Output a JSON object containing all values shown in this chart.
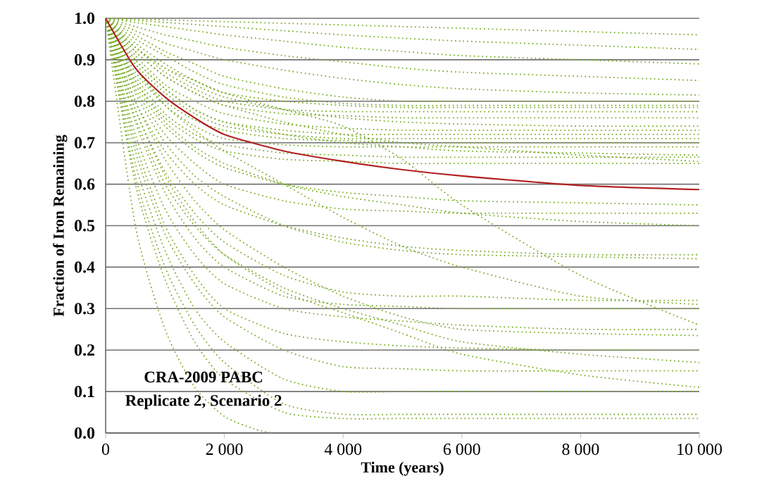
{
  "chart_data": {
    "type": "line",
    "xlabel": "Time (years)",
    "ylabel": "Fraction of Iron Remaining",
    "annotations": [
      "CRA-2009 PABC",
      "Replicate 2, Scenario 2"
    ],
    "xlim": [
      0,
      10000
    ],
    "ylim": [
      0,
      1.0
    ],
    "xticks": [
      0,
      {
        "value": 2000,
        "label": "2 000"
      },
      {
        "value": 4000,
        "label": "4 000"
      },
      {
        "value": 6000,
        "label": "6 000"
      },
      {
        "value": 8000,
        "label": "8 000"
      },
      {
        "value": 10000,
        "label": "10 000"
      }
    ],
    "yticks": [
      {
        "value": 0,
        "label": "0.0"
      },
      0.1,
      0.2,
      0.3,
      0.4,
      0.5,
      0.6,
      0.7,
      0.8,
      0.9,
      {
        "value": 1,
        "label": "1.0"
      }
    ],
    "grid": "y",
    "marker": "none",
    "line_style": "dotted",
    "x": [
      0,
      500,
      1000,
      1500,
      2000,
      3000,
      4000,
      5000,
      6000,
      8000,
      10000
    ],
    "series": [
      {
        "color": "#7cae2c",
        "values": [
          1,
          0.998,
          0.996,
          0.994,
          0.992,
          0.988,
          0.984,
          0.98,
          0.976,
          0.968,
          0.96
        ]
      },
      {
        "color": "#7cae2c",
        "values": [
          1,
          0.995,
          0.99,
          0.985,
          0.98,
          0.97,
          0.96,
          0.952,
          0.945,
          0.935,
          0.925
        ]
      },
      {
        "color": "#7cae2c",
        "values": [
          1,
          0.99,
          0.98,
          0.97,
          0.96,
          0.945,
          0.93,
          0.92,
          0.91,
          0.9,
          0.89
        ]
      },
      {
        "color": "#7cae2c",
        "values": [
          1,
          0.98,
          0.96,
          0.945,
          0.93,
          0.91,
          0.895,
          0.88,
          0.87,
          0.86,
          0.85
        ]
      },
      {
        "color": "#7cae2c",
        "values": [
          1,
          0.97,
          0.94,
          0.92,
          0.9,
          0.875,
          0.855,
          0.84,
          0.83,
          0.82,
          0.815
        ]
      },
      {
        "color": "#7cae2c",
        "values": [
          1,
          0.96,
          0.92,
          0.89,
          0.86,
          0.83,
          0.81,
          0.8,
          0.8,
          0.8,
          0.8
        ]
      },
      {
        "color": "#7cae2c",
        "values": [
          1,
          0.95,
          0.91,
          0.87,
          0.84,
          0.81,
          0.795,
          0.79,
          0.79,
          0.79,
          0.79
        ]
      },
      {
        "color": "#7cae2c",
        "values": [
          1,
          0.94,
          0.89,
          0.85,
          0.82,
          0.8,
          0.79,
          0.785,
          0.785,
          0.785,
          0.785
        ]
      },
      {
        "color": "#7cae2c",
        "values": [
          1,
          0.93,
          0.87,
          0.83,
          0.8,
          0.78,
          0.775,
          0.775,
          0.775,
          0.775,
          0.775
        ]
      },
      {
        "color": "#7cae2c",
        "values": [
          1,
          0.92,
          0.86,
          0.82,
          0.79,
          0.77,
          0.765,
          0.76,
          0.76,
          0.76,
          0.76
        ]
      },
      {
        "color": "#7cae2c",
        "values": [
          1,
          0.93,
          0.88,
          0.84,
          0.81,
          0.78,
          0.76,
          0.75,
          0.745,
          0.74,
          0.74
        ]
      },
      {
        "color": "#7cae2c",
        "values": [
          1,
          0.91,
          0.84,
          0.8,
          0.77,
          0.745,
          0.735,
          0.73,
          0.73,
          0.73,
          0.73
        ]
      },
      {
        "color": "#7cae2c",
        "values": [
          1,
          0.9,
          0.83,
          0.78,
          0.75,
          0.73,
          0.72,
          0.72,
          0.72,
          0.72,
          0.72
        ]
      },
      {
        "color": "#7cae2c",
        "values": [
          1,
          0.89,
          0.82,
          0.77,
          0.74,
          0.72,
          0.71,
          0.71,
          0.71,
          0.71,
          0.71
        ]
      },
      {
        "color": "#7cae2c",
        "values": [
          1,
          0.88,
          0.8,
          0.755,
          0.73,
          0.71,
          0.705,
          0.7,
          0.7,
          0.7,
          0.7
        ]
      },
      {
        "color": "#7cae2c",
        "values": [
          1,
          0.87,
          0.79,
          0.74,
          0.71,
          0.695,
          0.69,
          0.69,
          0.69,
          0.69,
          0.69
        ]
      },
      {
        "color": "#7cae2c",
        "values": [
          1,
          0.9,
          0.83,
          0.78,
          0.75,
          0.72,
          0.7,
          0.69,
          0.68,
          0.675,
          0.67
        ]
      },
      {
        "color": "#7cae2c",
        "values": [
          1,
          0.86,
          0.77,
          0.72,
          0.695,
          0.675,
          0.67,
          0.665,
          0.665,
          0.665,
          0.665
        ]
      },
      {
        "color": "#7cae2c",
        "values": [
          1,
          0.85,
          0.76,
          0.71,
          0.68,
          0.66,
          0.655,
          0.65,
          0.65,
          0.65,
          0.65
        ]
      },
      {
        "color": "#7cae2c",
        "values": [
          1,
          0.92,
          0.86,
          0.82,
          0.79,
          0.75,
          0.72,
          0.7,
          0.69,
          0.67,
          0.655
        ]
      },
      {
        "color": "#7cae2c",
        "values": [
          1,
          0.84,
          0.74,
          0.68,
          0.64,
          0.6,
          0.58,
          0.57,
          0.56,
          0.555,
          0.55
        ]
      },
      {
        "color": "#7cae2c",
        "values": [
          1,
          0.83,
          0.72,
          0.65,
          0.6,
          0.56,
          0.54,
          0.535,
          0.53,
          0.53,
          0.53
        ]
      },
      {
        "color": "#7cae2c",
        "values": [
          1,
          0.85,
          0.75,
          0.69,
          0.65,
          0.6,
          0.57,
          0.55,
          0.53,
          0.51,
          0.5
        ]
      },
      {
        "color": "#7cae2c",
        "values": [
          1,
          0.8,
          0.68,
          0.6,
          0.55,
          0.5,
          0.47,
          0.45,
          0.44,
          0.43,
          0.43
        ]
      },
      {
        "color": "#7cae2c",
        "values": [
          1,
          0.82,
          0.7,
          0.62,
          0.57,
          0.5,
          0.46,
          0.44,
          0.43,
          0.425,
          0.42
        ]
      },
      {
        "color": "#7cae2c",
        "values": [
          1,
          0.93,
          0.88,
          0.85,
          0.82,
          0.78,
          0.74,
          0.66,
          0.55,
          0.38,
          0.26
        ]
      },
      {
        "color": "#7cae2c",
        "values": [
          1,
          0.88,
          0.79,
          0.73,
          0.68,
          0.6,
          0.52,
          0.45,
          0.4,
          0.33,
          0.31
        ]
      },
      {
        "color": "#7cae2c",
        "values": [
          1,
          0.78,
          0.63,
          0.53,
          0.46,
          0.38,
          0.34,
          0.33,
          0.33,
          0.32,
          0.32
        ]
      },
      {
        "color": "#7cae2c",
        "values": [
          1,
          0.75,
          0.58,
          0.47,
          0.4,
          0.33,
          0.31,
          0.305,
          0.3,
          0.3,
          0.3
        ]
      },
      {
        "color": "#7cae2c",
        "values": [
          1,
          0.8,
          0.66,
          0.56,
          0.49,
          0.4,
          0.33,
          0.28,
          0.25,
          0.24,
          0.235
        ]
      },
      {
        "color": "#7cae2c",
        "values": [
          1,
          0.76,
          0.6,
          0.5,
          0.43,
          0.35,
          0.3,
          0.26,
          0.22,
          0.19,
          0.17
        ]
      },
      {
        "color": "#7cae2c",
        "values": [
          1,
          0.72,
          0.54,
          0.43,
          0.36,
          0.3,
          0.28,
          0.27,
          0.26,
          0.25,
          0.25
        ]
      },
      {
        "color": "#7cae2c",
        "values": [
          1,
          0.7,
          0.5,
          0.38,
          0.3,
          0.24,
          0.22,
          0.21,
          0.205,
          0.2,
          0.2
        ]
      },
      {
        "color": "#7cae2c",
        "values": [
          1,
          0.78,
          0.62,
          0.51,
          0.43,
          0.34,
          0.29,
          0.24,
          0.19,
          0.14,
          0.11
        ]
      },
      {
        "color": "#7cae2c",
        "values": [
          1,
          0.68,
          0.48,
          0.36,
          0.28,
          0.2,
          0.16,
          0.155,
          0.15,
          0.15,
          0.15
        ]
      },
      {
        "color": "#7cae2c",
        "values": [
          1,
          0.65,
          0.44,
          0.3,
          0.22,
          0.13,
          0.1,
          0.1,
          0.1,
          0.1,
          0.1
        ]
      },
      {
        "color": "#7cae2c",
        "values": [
          1,
          0.62,
          0.4,
          0.26,
          0.17,
          0.07,
          0.045,
          0.045,
          0.045,
          0.045,
          0.045
        ]
      },
      {
        "color": "#7cae2c",
        "values": [
          1,
          0.6,
          0.37,
          0.22,
          0.13,
          0.05,
          0.035,
          0.035,
          0.035,
          0.035,
          0.035
        ]
      },
      {
        "color": "#7cae2c",
        "x": [
          0,
          500,
          1000,
          1500,
          2000,
          2500,
          2800
        ],
        "values": [
          1,
          0.5,
          0.25,
          0.11,
          0.04,
          0.01,
          0
        ]
      },
      {
        "color": "#b22222",
        "line_style": "solid",
        "values": [
          1,
          0.88,
          0.81,
          0.76,
          0.72,
          0.68,
          0.655,
          0.635,
          0.62,
          0.597,
          0.587
        ]
      }
    ]
  }
}
